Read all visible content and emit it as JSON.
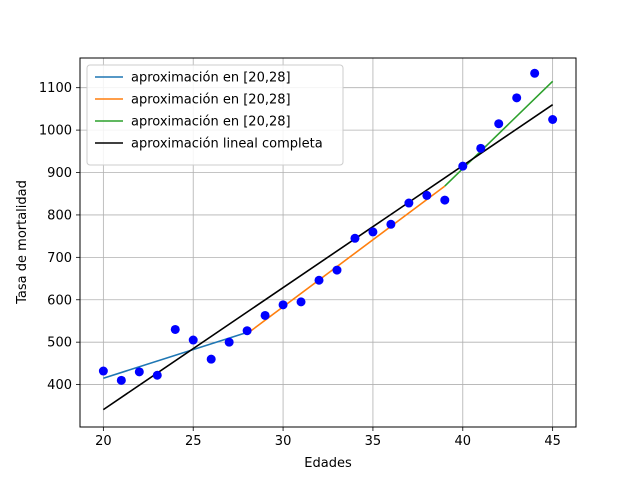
{
  "chart_data": {
    "type": "line",
    "xlabel": "Edades",
    "ylabel": "Tasa de mortalidad",
    "xlim": [
      18.7,
      46.3
    ],
    "ylim": [
      300,
      1170
    ],
    "xticks": [
      20,
      25,
      30,
      35,
      40,
      45
    ],
    "yticks": [
      400,
      500,
      600,
      700,
      800,
      900,
      1000,
      1100
    ],
    "grid": true,
    "legend_position": "upper-left",
    "points": {
      "color": "#0000ff",
      "x": [
        20,
        21,
        22,
        23,
        24,
        25,
        26,
        27,
        28,
        29,
        30,
        31,
        32,
        33,
        34,
        35,
        36,
        37,
        38,
        39,
        40,
        41,
        42,
        43,
        44,
        45
      ],
      "y": [
        432,
        410,
        430,
        422,
        530,
        505,
        460,
        500,
        527,
        563,
        588,
        595,
        646,
        670,
        745,
        760,
        778,
        828,
        846,
        835,
        915,
        957,
        1015,
        1076,
        1134,
        1025
      ]
    },
    "series": [
      {
        "name": "aproximación en [20,28]",
        "color": "#1f77b4",
        "x": [
          20,
          28
        ],
        "y": [
          415,
          523
        ]
      },
      {
        "name": "aproximación en [20,28]",
        "color": "#ff7f0e",
        "x": [
          28,
          39
        ],
        "y": [
          520,
          868
        ]
      },
      {
        "name": "aproximación en [20,28]",
        "color": "#2ca02c",
        "x": [
          39,
          45
        ],
        "y": [
          868,
          1115
        ]
      },
      {
        "name": "aproximación lineal completa",
        "color": "#000000",
        "x": [
          20,
          45
        ],
        "y": [
          341,
          1060
        ]
      }
    ]
  }
}
